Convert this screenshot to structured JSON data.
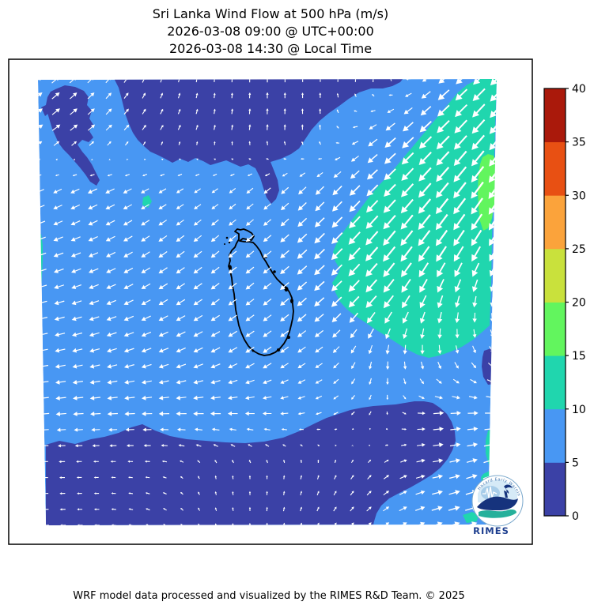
{
  "title": {
    "line1": "Sri Lanka Wind Flow at 500 hPa (m/s)",
    "line2": "2026-03-08 09:00 @ UTC+00:00",
    "line3": "2026-03-08 14:30 @ Local Time"
  },
  "footer": {
    "text": "WRF model data processed and visualized by the RIMES R&D Team. © 2025"
  },
  "logo": {
    "name": "RIMES",
    "ring_text": "Hazard Early Warning"
  },
  "chart_data": {
    "type": "quiver",
    "title": "Sri Lanka Wind Flow at 500 hPa (m/s)",
    "valid_time_utc": "2026-03-08 09:00 @ UTC+00:00",
    "valid_time_local": "2026-03-08 14:30 @ Local Time",
    "variable": "wind speed and direction",
    "level": "500 hPa",
    "units": "m/s",
    "arrow_color": "#ffffff",
    "coastline_color": "#000000",
    "colorbar": {
      "vmin": 0,
      "vmax": 40,
      "ticks": [
        0,
        5,
        10,
        15,
        20,
        25,
        30,
        35,
        40
      ],
      "segments": [
        {
          "range": [
            0,
            5
          ],
          "color": "#3b41a6"
        },
        {
          "range": [
            5,
            10
          ],
          "color": "#4897f3"
        },
        {
          "range": [
            10,
            15
          ],
          "color": "#20d6ae"
        },
        {
          "range": [
            15,
            20
          ],
          "color": "#62f55e"
        },
        {
          "range": [
            20,
            25
          ],
          "color": "#c9e13c"
        },
        {
          "range": [
            25,
            30
          ],
          "color": "#fba33b"
        },
        {
          "range": [
            30,
            35
          ],
          "color": "#e85013"
        },
        {
          "range": [
            35,
            40
          ],
          "color": "#aa190b"
        }
      ]
    },
    "speed_regions": [
      {
        "range": [
          0,
          5
        ],
        "areas": [
          "large north-central lobe",
          "small north-west patches",
          "southern band across bottom",
          "small blob on south-east edge"
        ]
      },
      {
        "range": [
          5,
          10
        ],
        "areas": [
          "background over most of the domain including Sri Lanka"
        ]
      },
      {
        "range": [
          10,
          15
        ],
        "areas": [
          "large eastern region",
          "thin west-edge sliver",
          "small specks near south-east corner"
        ]
      },
      {
        "range": [
          15,
          20
        ],
        "areas": [
          "small patch on the eastern edge"
        ]
      }
    ],
    "wind_grid": {
      "cols": 9,
      "rows": 9,
      "description": "coarse [u,v] wind components (m/s), row-major from north-west corner of the plot; v positive = northward",
      "uv": [
        [
          [
            5.4,
            4.5
          ],
          [
            4.2,
            4.2
          ],
          [
            1.4,
            3.8
          ],
          [
            0.3,
            3.5
          ],
          [
            0.0,
            4.0
          ],
          [
            0.0,
            3.5
          ],
          [
            0.3,
            4.0
          ],
          [
            -6.9,
            -5.8
          ],
          [
            -8.5,
            -8.5
          ]
        ],
        [
          [
            5.7,
            4.0
          ],
          [
            4.6,
            3.9
          ],
          [
            2.3,
            3.3
          ],
          [
            0.9,
            3.4
          ],
          [
            0.3,
            4.0
          ],
          [
            -0.3,
            3.5
          ],
          [
            -6.9,
            -5.8
          ],
          [
            -8.5,
            -8.5
          ],
          [
            -8.4,
            -10.0
          ]
        ],
        [
          [
            -5.4,
            -2.5
          ],
          [
            -6.3,
            -3.0
          ],
          [
            -5.2,
            -3.0
          ],
          [
            -4.1,
            -2.9
          ],
          [
            -4.6,
            -3.9
          ],
          [
            -5.7,
            -5.7
          ],
          [
            -7.8,
            -7.8
          ],
          [
            -8.4,
            -10.0
          ],
          [
            -8.0,
            -11.5
          ]
        ],
        [
          [
            -6.6,
            -2.4
          ],
          [
            -6.3,
            -3.0
          ],
          [
            -5.7,
            -4.0
          ],
          [
            -5.4,
            -4.5
          ],
          [
            -5.4,
            -4.5
          ],
          [
            -7.1,
            -7.1
          ],
          [
            -8.4,
            -10.0
          ],
          [
            -7.5,
            -10.6
          ],
          [
            -6.0,
            -10.4
          ]
        ],
        [
          [
            -6.8,
            -1.8
          ],
          [
            -6.6,
            -2.4
          ],
          [
            -6.1,
            -3.5
          ],
          [
            -5.7,
            -4.0
          ],
          [
            -5.5,
            -4.3
          ],
          [
            -6.7,
            -6.0
          ],
          [
            -7.1,
            -8.4
          ],
          [
            -3.1,
            -8.5
          ],
          [
            -0.6,
            -7.0
          ]
        ],
        [
          [
            -6.9,
            -1.2
          ],
          [
            -6.8,
            -1.8
          ],
          [
            -6.6,
            -2.4
          ],
          [
            -6.3,
            -3.0
          ],
          [
            -5.7,
            -4.0
          ],
          [
            -4.9,
            -3.4
          ],
          [
            -0.5,
            -6.0
          ],
          [
            1.0,
            -5.9
          ],
          [
            3.2,
            -3.8
          ]
        ],
        [
          [
            -7.0,
            -0.6
          ],
          [
            -7.0,
            -0.4
          ],
          [
            -7.0,
            -0.2
          ],
          [
            -7.0,
            0.0
          ],
          [
            -6.0,
            0.0
          ],
          [
            -3.8,
            -1.4
          ],
          [
            -1.0,
            -2.8
          ],
          [
            7.0,
            0.6
          ],
          [
            7.0,
            0.0
          ]
        ],
        [
          [
            -4.0,
            0.0
          ],
          [
            -3.0,
            0.0
          ],
          [
            -3.0,
            0.3
          ],
          [
            -0.4,
            2.5
          ],
          [
            0.0,
            2.5
          ],
          [
            0.8,
            2.9
          ],
          [
            2.8,
            2.8
          ],
          [
            6.9,
            1.2
          ],
          [
            7.5,
            2.7
          ]
        ],
        [
          [
            -4.0,
            -0.3
          ],
          [
            -3.5,
            0.0
          ],
          [
            -2.6,
            1.5
          ],
          [
            -0.9,
            2.3
          ],
          [
            0.3,
            3.0
          ],
          [
            1.8,
            3.0
          ],
          [
            3.8,
            3.2
          ],
          [
            7.5,
            2.7
          ],
          [
            8.7,
            2.3
          ]
        ]
      ]
    }
  }
}
